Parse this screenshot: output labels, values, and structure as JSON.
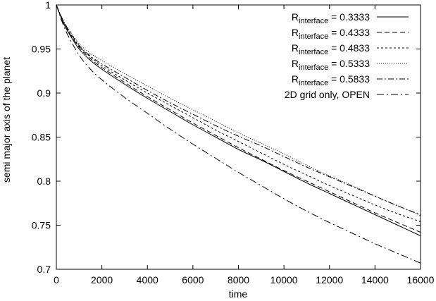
{
  "chart_data": {
    "type": "line",
    "xlabel": "time",
    "ylabel": "semi major axis of the planet",
    "xlim": [
      0,
      16000
    ],
    "ylim": [
      0.7,
      1.0
    ],
    "xticks": [
      "0",
      "2000",
      "4000",
      "6000",
      "8000",
      "10000",
      "12000",
      "14000",
      "16000"
    ],
    "yticks": [
      "0.7",
      "0.75",
      "0.8",
      "0.85",
      "0.9",
      "0.95",
      "1"
    ],
    "legend_position": "top-right",
    "grid": false,
    "x": [
      0,
      250,
      500,
      1000,
      1500,
      2000,
      3000,
      4000,
      5000,
      6000,
      7000,
      8000,
      9000,
      10000,
      11000,
      12000,
      13000,
      14000,
      15000,
      16000
    ],
    "series": [
      {
        "name": "R",
        "subscript": "interface",
        "value_text": " = 0.3333",
        "dash": "",
        "values": [
          1.0,
          0.983,
          0.97,
          0.95,
          0.937,
          0.927,
          0.91,
          0.894,
          0.879,
          0.864,
          0.85,
          0.836,
          0.824,
          0.811,
          0.798,
          0.786,
          0.774,
          0.762,
          0.75,
          0.738
        ]
      },
      {
        "name": "R",
        "subscript": "interface",
        "value_text": " = 0.4333",
        "dash": "7,4",
        "values": [
          1.0,
          0.984,
          0.971,
          0.952,
          0.939,
          0.929,
          0.912,
          0.896,
          0.881,
          0.866,
          0.852,
          0.838,
          0.825,
          0.812,
          0.8,
          0.788,
          0.776,
          0.764,
          0.753,
          0.742
        ]
      },
      {
        "name": "R",
        "subscript": "interface",
        "value_text": " = 0.4833",
        "dash": "3,3",
        "values": [
          1.0,
          0.984,
          0.972,
          0.953,
          0.941,
          0.931,
          0.915,
          0.9,
          0.886,
          0.872,
          0.858,
          0.845,
          0.832,
          0.819,
          0.807,
          0.795,
          0.784,
          0.773,
          0.763,
          0.754
        ]
      },
      {
        "name": "R",
        "subscript": "interface",
        "value_text": " = 0.5333",
        "dash": "1,2",
        "values": [
          1.0,
          0.985,
          0.974,
          0.956,
          0.945,
          0.937,
          0.922,
          0.908,
          0.894,
          0.881,
          0.868,
          0.855,
          0.843,
          0.831,
          0.818,
          0.806,
          0.795,
          0.783,
          0.772,
          0.761
        ]
      },
      {
        "name": "R",
        "subscript": "interface",
        "value_text": " = 0.5833",
        "dash": "8,3,2,3",
        "values": [
          1.0,
          0.985,
          0.973,
          0.954,
          0.942,
          0.933,
          0.918,
          0.903,
          0.889,
          0.876,
          0.863,
          0.851,
          0.84,
          0.828,
          0.816,
          0.805,
          0.794,
          0.783,
          0.772,
          0.762
        ]
      },
      {
        "name": "2D grid only, OPEN",
        "subscript": "",
        "value_text": "",
        "dash": "10,4,2,4",
        "values": [
          1.0,
          0.981,
          0.966,
          0.943,
          0.927,
          0.915,
          0.895,
          0.877,
          0.859,
          0.842,
          0.826,
          0.81,
          0.795,
          0.78,
          0.766,
          0.753,
          0.741,
          0.729,
          0.718,
          0.707
        ]
      }
    ]
  }
}
